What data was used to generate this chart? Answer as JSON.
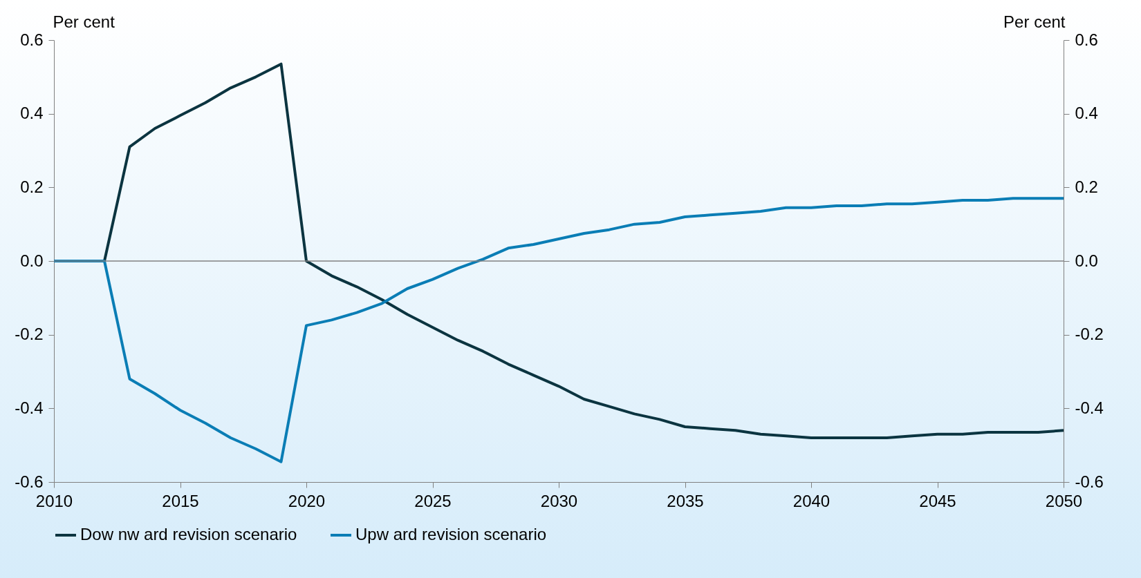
{
  "chart_data": {
    "type": "line",
    "ylabel": "Per cent",
    "y2label": "Per cent",
    "x": [
      2010,
      2011,
      2012,
      2013,
      2014,
      2015,
      2016,
      2017,
      2018,
      2019,
      2020,
      2021,
      2022,
      2023,
      2024,
      2025,
      2026,
      2027,
      2028,
      2029,
      2030,
      2031,
      2032,
      2033,
      2034,
      2035,
      2036,
      2037,
      2038,
      2039,
      2040,
      2041,
      2042,
      2043,
      2044,
      2045,
      2046,
      2047,
      2048,
      2049,
      2050
    ],
    "series": [
      {
        "name": "Dow nw ard revision scenario",
        "color": "#0b3440",
        "values": [
          0,
          0,
          0,
          0.31,
          0.36,
          0.395,
          0.43,
          0.47,
          0.5,
          0.535,
          0,
          -0.04,
          -0.07,
          -0.105,
          -0.145,
          -0.18,
          -0.215,
          -0.245,
          -0.28,
          -0.31,
          -0.34,
          -0.375,
          -0.395,
          -0.415,
          -0.43,
          -0.45,
          -0.455,
          -0.46,
          -0.47,
          -0.475,
          -0.48,
          -0.48,
          -0.48,
          -0.48,
          -0.475,
          -0.47,
          -0.47,
          -0.465,
          -0.465,
          -0.465,
          -0.46
        ]
      },
      {
        "name": "Upw ard revision scenario",
        "color": "#0a7db5",
        "values": [
          0,
          0,
          0,
          -0.32,
          -0.36,
          -0.405,
          -0.44,
          -0.48,
          -0.51,
          -0.545,
          -0.175,
          -0.16,
          -0.14,
          -0.115,
          -0.075,
          -0.05,
          -0.02,
          0.005,
          0.035,
          0.045,
          0.06,
          0.075,
          0.085,
          0.1,
          0.105,
          0.12,
          0.125,
          0.13,
          0.135,
          0.145,
          0.145,
          0.15,
          0.15,
          0.155,
          0.155,
          0.16,
          0.165,
          0.165,
          0.17,
          0.17,
          0.17
        ]
      }
    ],
    "xlim": [
      2010,
      2050
    ],
    "xticks": [
      2010,
      2015,
      2020,
      2025,
      2030,
      2035,
      2040,
      2045,
      2050
    ],
    "ylim": [
      -0.6,
      0.6
    ],
    "yticks": [
      {
        "value": -0.6,
        "label": "-0.6"
      },
      {
        "value": -0.4,
        "label": "-0.4"
      },
      {
        "value": -0.2,
        "label": "-0.2"
      },
      {
        "value": 0,
        "label": "0.0"
      },
      {
        "value": 0.2,
        "label": "0.2"
      },
      {
        "value": 0.4,
        "label": "0.4"
      },
      {
        "value": 0.6,
        "label": "0.6"
      }
    ],
    "y2lim": [
      -0.6,
      0.6
    ],
    "y2ticks": [
      {
        "value": -0.6,
        "label": "-0.6"
      },
      {
        "value": -0.4,
        "label": "-0.4"
      },
      {
        "value": -0.2,
        "label": "-0.2"
      },
      {
        "value": 0,
        "label": "0.0"
      },
      {
        "value": 0.2,
        "label": "0.2"
      },
      {
        "value": 0.4,
        "label": "0.4"
      },
      {
        "value": 0.6,
        "label": "0.6"
      }
    ],
    "ref_lines": [
      {
        "axis": "y2",
        "value": 0,
        "color": "#808080"
      }
    ],
    "legend": "bottom",
    "grid": false,
    "line_style": "solid",
    "marker": "none"
  }
}
